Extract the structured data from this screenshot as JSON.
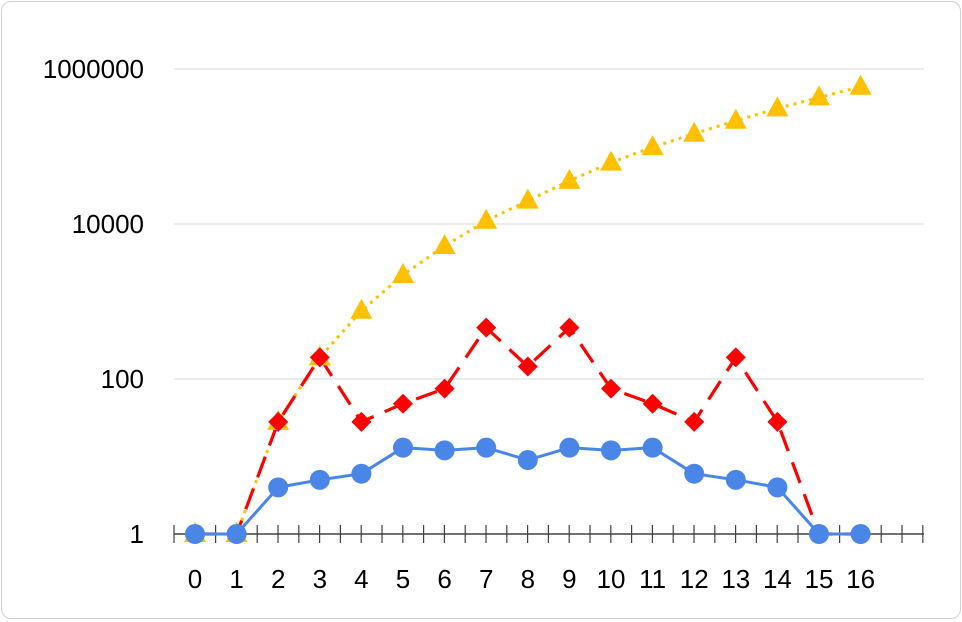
{
  "chart_data": {
    "type": "line",
    "y_scale": "log10",
    "ylim": [
      1,
      1000000
    ],
    "y_ticks": [
      {
        "value": 1,
        "label": "1"
      },
      {
        "value": 100,
        "label": "100"
      },
      {
        "value": 10000,
        "label": "10000"
      },
      {
        "value": 1000000,
        "label": "1000000"
      }
    ],
    "x": [
      0,
      1,
      2,
      3,
      4,
      5,
      6,
      7,
      8,
      9,
      10,
      11,
      12,
      13,
      14,
      15,
      16
    ],
    "x_tick_labels": [
      "0",
      "1",
      "2",
      "3",
      "4",
      "5",
      "6",
      "7",
      "8",
      "9",
      "10",
      "11",
      "12",
      "13",
      "14",
      "15",
      "16"
    ],
    "grid": true,
    "legend": "none",
    "series": [
      {
        "color": "#4a86e8",
        "line_style": "solid",
        "marker": "circle",
        "values": [
          1,
          1,
          4,
          5,
          6,
          13,
          12,
          13,
          9,
          13,
          12,
          13,
          6,
          5,
          4,
          1,
          1
        ]
      },
      {
        "color": "#ff0000",
        "line_style": "dashed",
        "marker": "diamond",
        "values": [
          1,
          1,
          28,
          190,
          28,
          48,
          75,
          460,
          145,
          460,
          75,
          48,
          28,
          190,
          28,
          1,
          1
        ]
      },
      {
        "color": "#ffc000",
        "line_style": "dotted",
        "marker": "triangle",
        "values": [
          1,
          1,
          28,
          190,
          760,
          2200,
          5200,
          11000,
          20000,
          36000,
          62000,
          98000,
          146000,
          215000,
          310000,
          430000,
          590000
        ]
      }
    ]
  }
}
